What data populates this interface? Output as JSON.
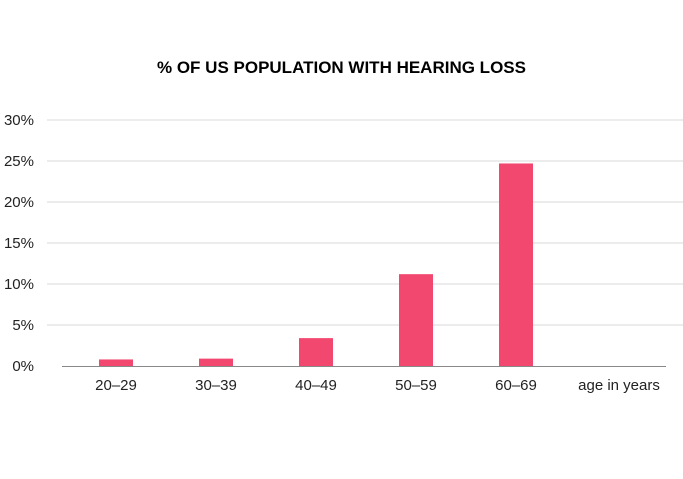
{
  "chart_data": {
    "type": "bar",
    "title": "% OF US POPULATION WITH HEARING LOSS",
    "categories": [
      "20–29",
      "30–39",
      "40–49",
      "50–59",
      "60–69"
    ],
    "values": [
      0.8,
      0.9,
      3.4,
      11.2,
      24.7
    ],
    "extra_x_label": "age in years",
    "xlabel": "",
    "ylabel": "",
    "ylim": [
      0,
      30
    ],
    "yticks": [
      "0%",
      "5%",
      "10%",
      "15%",
      "20%",
      "25%",
      "30%"
    ],
    "ytick_values": [
      0,
      5,
      10,
      15,
      20,
      25,
      30
    ],
    "bar_color": "#F2476F",
    "grid": true,
    "legend": "none"
  }
}
